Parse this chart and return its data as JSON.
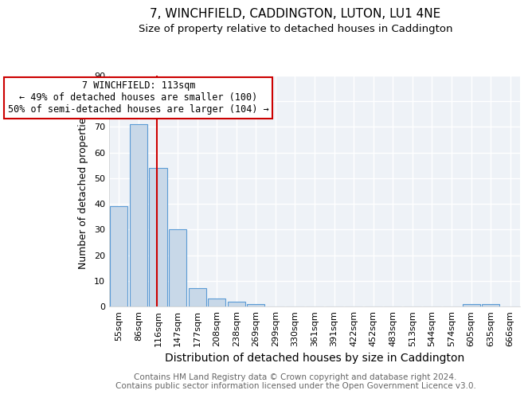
{
  "title": "7, WINCHFIELD, CADDINGTON, LUTON, LU1 4NE",
  "subtitle": "Size of property relative to detached houses in Caddington",
  "xlabel": "Distribution of detached houses by size in Caddington",
  "ylabel": "Number of detached properties",
  "categories": [
    "55sqm",
    "86sqm",
    "116sqm",
    "147sqm",
    "177sqm",
    "208sqm",
    "238sqm",
    "269sqm",
    "299sqm",
    "330sqm",
    "361sqm",
    "391sqm",
    "422sqm",
    "452sqm",
    "483sqm",
    "513sqm",
    "544sqm",
    "574sqm",
    "605sqm",
    "635sqm",
    "666sqm"
  ],
  "values": [
    39,
    71,
    54,
    30,
    7,
    3,
    2,
    1,
    0,
    0,
    0,
    0,
    0,
    0,
    0,
    0,
    0,
    0,
    1,
    1,
    0
  ],
  "bar_color": "#c8d8e8",
  "bar_edge_color": "#5b9bd5",
  "red_line_index": 2,
  "annotation_line1": "7 WINCHFIELD: 113sqm",
  "annotation_line2": "← 49% of detached houses are smaller (100)",
  "annotation_line3": "50% of semi-detached houses are larger (104) →",
  "annotation_box_color": "#ffffff",
  "annotation_box_edge": "#cc0000",
  "ylim": [
    0,
    90
  ],
  "yticks": [
    0,
    10,
    20,
    30,
    40,
    50,
    60,
    70,
    80,
    90
  ],
  "footer1": "Contains HM Land Registry data © Crown copyright and database right 2024.",
  "footer2": "Contains public sector information licensed under the Open Government Licence v3.0.",
  "bg_color": "#eef2f7",
  "grid_color": "#ffffff",
  "title_fontsize": 11,
  "subtitle_fontsize": 9.5,
  "xlabel_fontsize": 10,
  "ylabel_fontsize": 9,
  "tick_fontsize": 8,
  "annotation_fontsize": 8.5,
  "footer_fontsize": 7.5
}
